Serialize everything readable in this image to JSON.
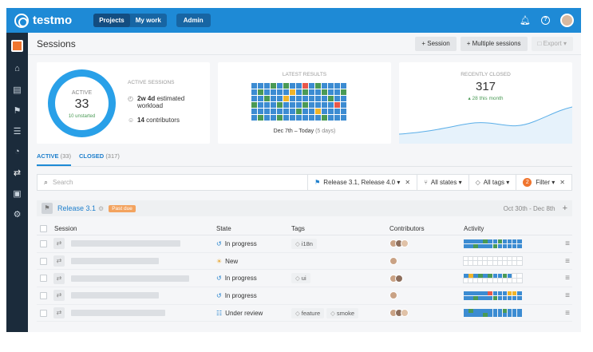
{
  "app": {
    "name": "testmo"
  },
  "topnav": {
    "projects": "Projects",
    "mywork": "My work",
    "admin": "Admin"
  },
  "page": {
    "title": "Sessions"
  },
  "header_actions": {
    "session": "Session",
    "multiple": "Multiple sessions",
    "export": "Export"
  },
  "active_card": {
    "donut_label": "ACTIVE",
    "donut_value": "33",
    "donut_sub": "10 unstarted",
    "title": "ACTIVE SESSIONS",
    "estimate_value": "2w 4d",
    "estimate_rest": "estimated",
    "estimate_line2": "workload",
    "contributors_value": "14",
    "contributors_rest": "contributors"
  },
  "latest_card": {
    "title": "LATEST RESULTS",
    "range": "Dec 7th – Today",
    "range_suffix": "(5 days)",
    "grid": [
      "bbbgbgbbrbgbbbb",
      "bgbbbbybgbbgbbg",
      "bbgbbybbbbbbgbb",
      "gbbbgbbbgbbbbrb",
      "bbbbbbbgbbybbbb",
      "bgbbgbbbbbbgbbb"
    ],
    "colors": {
      "b": "#3c8cd2",
      "g": "#4a9a55",
      "r": "#e8574a",
      "y": "#f0b429"
    }
  },
  "closed_card": {
    "title": "RECENTLY CLOSED",
    "value": "317",
    "sub": "28 this month"
  },
  "tabs": [
    {
      "label": "ACTIVE",
      "count": "(33)"
    },
    {
      "label": "CLOSED",
      "count": "(317)"
    }
  ],
  "filters": {
    "search_placeholder": "Search",
    "milestone": "Release 3.1, Release 4.0",
    "states": "All states",
    "tags": "All tags",
    "filter_count": "2",
    "filter": "Filter"
  },
  "group": {
    "title": "Release 3.1",
    "badge": "Past due",
    "dates": "Oct 30th - Dec 8th"
  },
  "table": {
    "headers": {
      "session": "Session",
      "state": "State",
      "tags": "Tags",
      "contributors": "Contributors",
      "activity": "Activity"
    },
    "rows": [
      {
        "state": "In progress",
        "state_icon": "history-icon",
        "tags": [
          "i18n"
        ],
        "avatars": 3,
        "bar_fraction": 0.72,
        "activity": "bbbbgbbgbbbb|bbgbbbgbbbbb"
      },
      {
        "state": "New",
        "state_icon": "sun-icon",
        "tags": [],
        "avatars": 1,
        "bar_fraction": 0.58,
        "activity": "eeeeeeeeeeee|eeeeeeeeeeee"
      },
      {
        "state": "In progress",
        "state_icon": "history-icon",
        "tags": [
          "ui"
        ],
        "avatars": 2,
        "bar_fraction": 0.78,
        "activity": "bybgbgbbgbee|eeeeeeeeeeee"
      },
      {
        "state": "In progress",
        "state_icon": "history-icon",
        "tags": [],
        "avatars": 1,
        "bar_fraction": 0.58,
        "activity": "bbbbbrbbbyyb|bbgbbbgbbbbb"
      },
      {
        "state": "Under review",
        "state_icon": "comments-icon",
        "tags": [
          "feature",
          "smoke"
        ],
        "avatars": 3,
        "bar_fraction": 0.62,
        "activity": "bgbbbbbbgbbb|bbbbgbbbbbbb"
      }
    ]
  }
}
